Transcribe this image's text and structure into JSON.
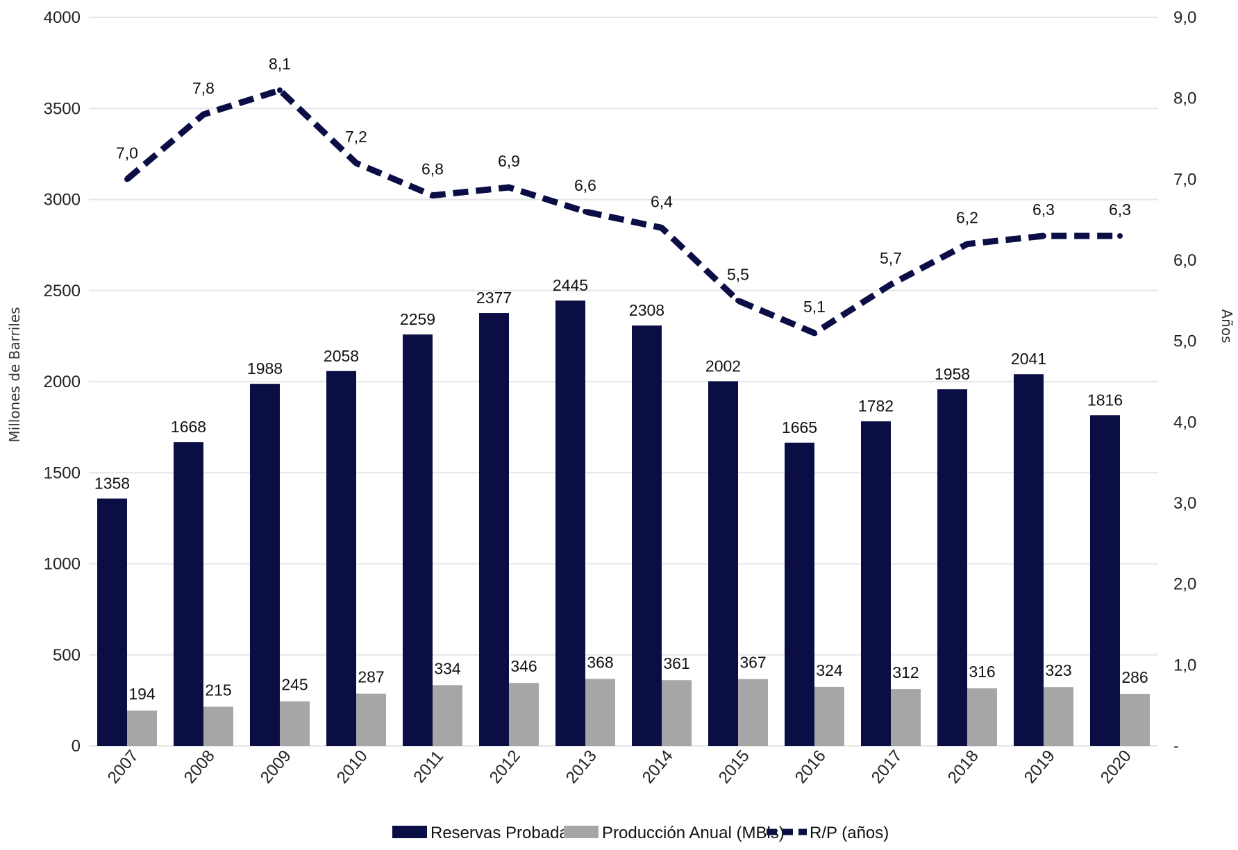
{
  "chart_data": {
    "type": "bar",
    "categories": [
      "2007",
      "2008",
      "2009",
      "2010",
      "2011",
      "2012",
      "2013",
      "2014",
      "2015",
      "2016",
      "2017",
      "2018",
      "2019",
      "2020"
    ],
    "series": [
      {
        "name": "Reservas Probadas",
        "kind": "bar",
        "axis": "left",
        "color": "#0a0e45",
        "values": [
          1358,
          1668,
          1988,
          2058,
          2259,
          2377,
          2445,
          2308,
          2002,
          1665,
          1782,
          1958,
          2041,
          1816
        ],
        "labels": [
          "1358",
          "1668",
          "1988",
          "2058",
          "2259",
          "2377",
          "2445",
          "2308",
          "2002",
          "1665",
          "1782",
          "1958",
          "2041",
          "1816"
        ]
      },
      {
        "name": "Producción Anual (MBls)",
        "kind": "bar",
        "axis": "left",
        "color": "#a6a6a6",
        "values": [
          194,
          215,
          245,
          287,
          334,
          346,
          368,
          361,
          367,
          324,
          312,
          316,
          323,
          286
        ],
        "labels": [
          "194",
          "215",
          "245",
          "287",
          "334",
          "346",
          "368",
          "361",
          "367",
          "324",
          "312",
          "316",
          "323",
          "286"
        ]
      },
      {
        "name": "R/P (años)",
        "kind": "line",
        "style": "dashed",
        "axis": "right",
        "color": "#0a0e45",
        "values": [
          7.0,
          7.8,
          8.1,
          7.2,
          6.8,
          6.9,
          6.6,
          6.4,
          5.5,
          5.1,
          5.7,
          6.2,
          6.3,
          6.3
        ],
        "labels": [
          "7,0",
          "7,8",
          "8,1",
          "7,2",
          "6,8",
          "6,9",
          "6,6",
          "6,4",
          "5,5",
          "5,1",
          "5,7",
          "6,2",
          "6,3",
          "6,3"
        ]
      }
    ],
    "ylabel": "Millones de Barriles",
    "y2label": "Años",
    "ylim": [
      0,
      4000
    ],
    "y2lim": [
      0,
      9
    ],
    "yticks": [
      0,
      500,
      1000,
      1500,
      2000,
      2500,
      3000,
      3500,
      4000
    ],
    "ytick_labels": [
      "0",
      "500",
      "1000",
      "1500",
      "2000",
      "2500",
      "3000",
      "3500",
      "4000"
    ],
    "y2ticks": [
      0,
      1,
      2,
      3,
      4,
      5,
      6,
      7,
      8,
      9
    ],
    "y2tick_labels": [
      "-",
      "1,0",
      "2,0",
      "3,0",
      "4,0",
      "5,0",
      "6,0",
      "7,0",
      "8,0",
      "9,0"
    ],
    "grid": true,
    "legend_position": "bottom-center"
  }
}
